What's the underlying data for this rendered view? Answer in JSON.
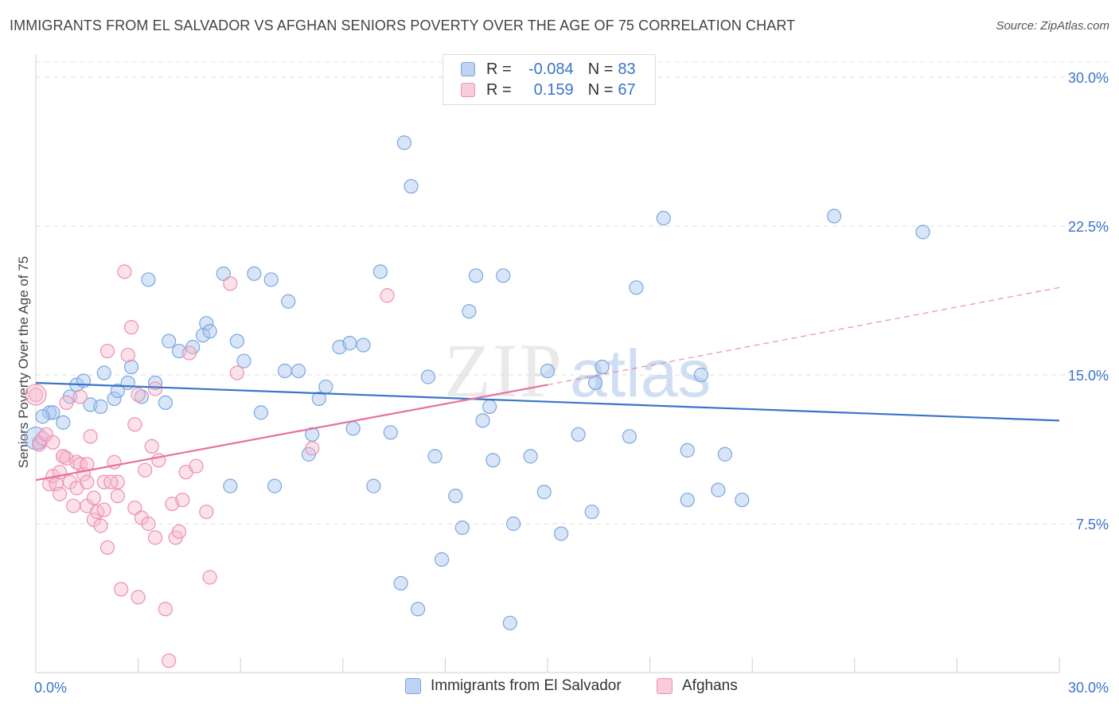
{
  "title": "IMMIGRANTS FROM EL SALVADOR VS AFGHAN SENIORS POVERTY OVER THE AGE OF 75 CORRELATION CHART",
  "source": "Source: ZipAtlas.com",
  "watermark": {
    "zip": "ZIP",
    "atlas": "atlas"
  },
  "legend": {
    "rows": [
      {
        "r_label": "R =",
        "r_value": "-0.084",
        "n_label": "N =",
        "n_value": "83",
        "color": "#a9c6ef",
        "border": "#7aa7e0"
      },
      {
        "r_label": "R =",
        "r_value": "0.159",
        "n_label": "N =",
        "n_value": "67",
        "color": "#f6bcd0",
        "border": "#ee8fb1"
      }
    ]
  },
  "bottom_legend": [
    {
      "label": "Immigrants from El Salvador",
      "color": "#a9c6ef",
      "border": "#7aa7e0"
    },
    {
      "label": "Afghans",
      "color": "#f6bcd0",
      "border": "#ee8fb1"
    }
  ],
  "chart_data": {
    "type": "scatter",
    "title": "IMMIGRANTS FROM EL SALVADOR VS AFGHAN SENIORS POVERTY OVER THE AGE OF 75 CORRELATION CHART",
    "xlabel": "",
    "ylabel": "Seniors Poverty Over the Age of 75",
    "xlim": [
      0,
      30
    ],
    "ylim": [
      0,
      30
    ],
    "x_tick_labels": [
      "0.0%",
      "30.0%"
    ],
    "y_ticks": [
      7.5,
      15.0,
      22.5,
      30.0
    ],
    "y_tick_labels": [
      "7.5%",
      "15.0%",
      "22.5%",
      "30.0%"
    ],
    "grid": "horizontal dashed",
    "legend_position": "top-center",
    "series": [
      {
        "name": "Immigrants from El Salvador",
        "color": "#a9c6ef",
        "stroke": "#7aa7e0",
        "trend": {
          "x": [
            0,
            30
          ],
          "y": [
            14.6,
            12.7
          ],
          "color": "#3a74c9"
        },
        "points": [
          [
            0.1,
            11.6
          ],
          [
            0.4,
            13.1
          ],
          [
            0.5,
            13.1
          ],
          [
            0.8,
            12.6
          ],
          [
            1.0,
            13.9
          ],
          [
            1.2,
            14.5
          ],
          [
            1.4,
            14.7
          ],
          [
            1.6,
            13.5
          ],
          [
            1.9,
            13.4
          ],
          [
            2.0,
            15.1
          ],
          [
            2.3,
            13.8
          ],
          [
            2.4,
            14.2
          ],
          [
            2.7,
            14.6
          ],
          [
            2.8,
            15.4
          ],
          [
            3.1,
            13.9
          ],
          [
            3.3,
            19.8
          ],
          [
            3.5,
            14.6
          ],
          [
            3.8,
            13.6
          ],
          [
            3.9,
            16.7
          ],
          [
            4.2,
            16.2
          ],
          [
            4.6,
            16.4
          ],
          [
            4.9,
            17.0
          ],
          [
            5.0,
            17.6
          ],
          [
            5.1,
            17.2
          ],
          [
            5.5,
            20.1
          ],
          [
            5.7,
            9.4
          ],
          [
            5.9,
            16.7
          ],
          [
            6.1,
            15.7
          ],
          [
            6.4,
            20.1
          ],
          [
            6.6,
            13.1
          ],
          [
            6.9,
            19.8
          ],
          [
            7.0,
            9.4
          ],
          [
            7.3,
            15.2
          ],
          [
            7.4,
            18.7
          ],
          [
            7.7,
            15.2
          ],
          [
            8.0,
            11.0
          ],
          [
            8.1,
            12.0
          ],
          [
            8.3,
            13.8
          ],
          [
            8.5,
            14.4
          ],
          [
            8.9,
            16.4
          ],
          [
            9.2,
            16.6
          ],
          [
            9.3,
            12.3
          ],
          [
            9.6,
            16.5
          ],
          [
            9.9,
            9.4
          ],
          [
            10.1,
            20.2
          ],
          [
            10.4,
            12.1
          ],
          [
            10.7,
            4.5
          ],
          [
            10.8,
            26.7
          ],
          [
            11.0,
            24.5
          ],
          [
            11.2,
            3.2
          ],
          [
            11.5,
            14.9
          ],
          [
            11.7,
            10.9
          ],
          [
            11.9,
            5.7
          ],
          [
            12.3,
            8.9
          ],
          [
            12.5,
            7.3
          ],
          [
            12.7,
            18.2
          ],
          [
            12.9,
            20.0
          ],
          [
            13.1,
            12.7
          ],
          [
            13.3,
            13.4
          ],
          [
            13.4,
            10.7
          ],
          [
            13.7,
            20.0
          ],
          [
            13.9,
            2.5
          ],
          [
            14.0,
            7.5
          ],
          [
            14.5,
            10.9
          ],
          [
            14.9,
            9.1
          ],
          [
            15.0,
            15.2
          ],
          [
            15.4,
            7.0
          ],
          [
            15.9,
            12.0
          ],
          [
            16.3,
            8.1
          ],
          [
            16.4,
            14.6
          ],
          [
            16.6,
            15.4
          ],
          [
            17.4,
            11.9
          ],
          [
            17.6,
            19.4
          ],
          [
            18.4,
            22.9
          ],
          [
            19.1,
            11.2
          ],
          [
            19.1,
            8.7
          ],
          [
            19.5,
            15.0
          ],
          [
            20.0,
            9.2
          ],
          [
            20.2,
            11.0
          ],
          [
            20.7,
            8.7
          ],
          [
            23.4,
            23.0
          ],
          [
            26.0,
            22.2
          ],
          [
            0.2,
            12.9
          ]
        ]
      },
      {
        "name": "Afghans",
        "color": "#f6bcd0",
        "stroke": "#ee8fb1",
        "trend": {
          "x": [
            0,
            15
          ],
          "y": [
            9.7,
            14.5
          ],
          "dashed_to": [
            30,
            19.4
          ],
          "color": "#e8709c"
        },
        "points": [
          [
            0.0,
            14.0
          ],
          [
            0.1,
            11.5
          ],
          [
            0.2,
            11.8
          ],
          [
            0.3,
            12.0
          ],
          [
            0.4,
            9.5
          ],
          [
            0.5,
            9.9
          ],
          [
            0.6,
            9.5
          ],
          [
            0.7,
            9.0
          ],
          [
            0.7,
            10.1
          ],
          [
            0.8,
            10.9
          ],
          [
            0.9,
            13.6
          ],
          [
            0.9,
            10.8
          ],
          [
            1.0,
            9.6
          ],
          [
            1.1,
            8.4
          ],
          [
            1.2,
            10.6
          ],
          [
            1.2,
            9.3
          ],
          [
            1.3,
            10.5
          ],
          [
            1.4,
            10.0
          ],
          [
            1.5,
            9.6
          ],
          [
            1.5,
            8.4
          ],
          [
            1.6,
            11.9
          ],
          [
            1.7,
            8.8
          ],
          [
            1.7,
            7.7
          ],
          [
            1.8,
            8.1
          ],
          [
            1.9,
            7.4
          ],
          [
            2.0,
            9.6
          ],
          [
            2.0,
            8.2
          ],
          [
            2.1,
            6.3
          ],
          [
            2.1,
            16.2
          ],
          [
            2.3,
            10.6
          ],
          [
            2.4,
            9.6
          ],
          [
            2.4,
            8.9
          ],
          [
            2.5,
            4.2
          ],
          [
            2.6,
            20.2
          ],
          [
            2.7,
            16.0
          ],
          [
            2.8,
            17.4
          ],
          [
            2.9,
            12.5
          ],
          [
            2.9,
            8.3
          ],
          [
            3.0,
            3.8
          ],
          [
            3.1,
            7.8
          ],
          [
            3.2,
            10.2
          ],
          [
            3.3,
            7.5
          ],
          [
            3.4,
            11.4
          ],
          [
            3.5,
            6.8
          ],
          [
            3.5,
            14.3
          ],
          [
            3.6,
            10.7
          ],
          [
            3.8,
            3.2
          ],
          [
            3.9,
            0.6
          ],
          [
            4.0,
            8.5
          ],
          [
            4.1,
            6.8
          ],
          [
            4.2,
            7.1
          ],
          [
            4.3,
            8.7
          ],
          [
            4.4,
            10.1
          ],
          [
            4.5,
            16.1
          ],
          [
            4.7,
            10.4
          ],
          [
            5.0,
            8.1
          ],
          [
            5.1,
            4.8
          ],
          [
            5.7,
            19.6
          ],
          [
            5.9,
            15.1
          ],
          [
            8.1,
            11.3
          ],
          [
            10.3,
            19.0
          ],
          [
            0.5,
            11.6
          ],
          [
            0.8,
            10.9
          ],
          [
            1.5,
            10.5
          ],
          [
            3.0,
            14.0
          ],
          [
            1.3,
            13.9
          ],
          [
            2.2,
            9.6
          ]
        ]
      }
    ]
  }
}
